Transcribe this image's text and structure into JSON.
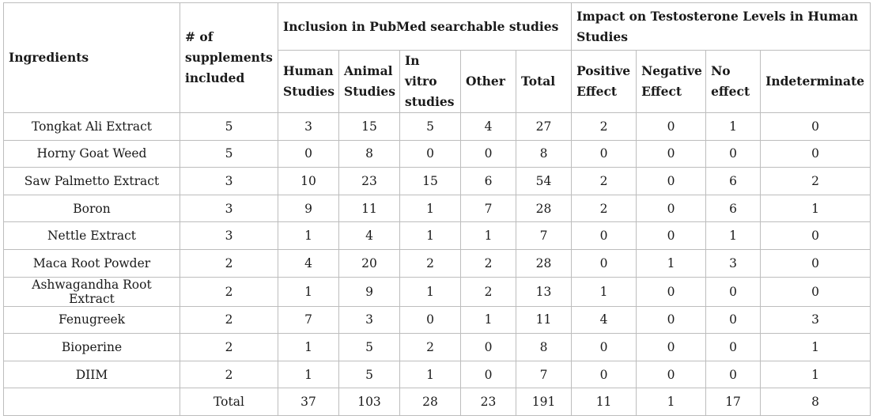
{
  "headers": {
    "ingredients": "Ingredients",
    "num_supplements": "# of supplements included",
    "pubmed_group": "Inclusion in PubMed searchable studies",
    "impact_group": "Impact on Testosterone Levels in Human Studies",
    "human_studies": "Human Studies",
    "animal_studies": "Animal Studies",
    "in_vitro": "In vitro studies",
    "other": "Other",
    "total": "Total",
    "positive": "Positive Effect",
    "negative": "Negative Effect",
    "no_effect": "No effect",
    "indeterminate": "Indeterminate"
  },
  "rows": [
    {
      "name": "Tongkat Ali Extract",
      "n": "5",
      "human": "3",
      "animal": "15",
      "vitro": "5",
      "other": "4",
      "total": "27",
      "pos": "2",
      "neg": "0",
      "none": "1",
      "indet": "0"
    },
    {
      "name": "Horny Goat Weed",
      "n": "5",
      "human": "0",
      "animal": "8",
      "vitro": "0",
      "other": "0",
      "total": "8",
      "pos": "0",
      "neg": "0",
      "none": "0",
      "indet": "0"
    },
    {
      "name": "Saw Palmetto Extract",
      "n": "3",
      "human": "10",
      "animal": "23",
      "vitro": "15",
      "other": "6",
      "total": "54",
      "pos": "2",
      "neg": "0",
      "none": "6",
      "indet": "2"
    },
    {
      "name": "Boron",
      "n": "3",
      "human": "9",
      "animal": "11",
      "vitro": "1",
      "other": "7",
      "total": "28",
      "pos": "2",
      "neg": "0",
      "none": "6",
      "indet": "1"
    },
    {
      "name": "Nettle Extract",
      "n": "3",
      "human": "1",
      "animal": "4",
      "vitro": "1",
      "other": "1",
      "total": "7",
      "pos": "0",
      "neg": "0",
      "none": "1",
      "indet": "0"
    },
    {
      "name": "Maca Root Powder",
      "n": "2",
      "human": "4",
      "animal": "20",
      "vitro": "2",
      "other": "2",
      "total": "28",
      "pos": "0",
      "neg": "1",
      "none": "3",
      "indet": "0"
    },
    {
      "name": "Ashwagandha Root Extract",
      "n": "2",
      "human": "1",
      "animal": "9",
      "vitro": "1",
      "other": "2",
      "total": "13",
      "pos": "1",
      "neg": "0",
      "none": "0",
      "indet": "0"
    },
    {
      "name": "Fenugreek",
      "n": "2",
      "human": "7",
      "animal": "3",
      "vitro": "0",
      "other": "1",
      "total": "11",
      "pos": "4",
      "neg": "0",
      "none": "0",
      "indet": "3"
    },
    {
      "name": "Bioperine",
      "n": "2",
      "human": "1",
      "animal": "5",
      "vitro": "2",
      "other": "0",
      "total": "8",
      "pos": "0",
      "neg": "0",
      "none": "0",
      "indet": "1"
    },
    {
      "name": "DIIM",
      "n": "2",
      "human": "1",
      "animal": "5",
      "vitro": "1",
      "other": "0",
      "total": "7",
      "pos": "0",
      "neg": "0",
      "none": "0",
      "indet": "1"
    }
  ],
  "totals": {
    "label": "Total",
    "human": "37",
    "animal": "103",
    "vitro": "28",
    "other": "23",
    "total": "191",
    "pos": "11",
    "neg": "1",
    "none": "17",
    "indet": "8"
  }
}
